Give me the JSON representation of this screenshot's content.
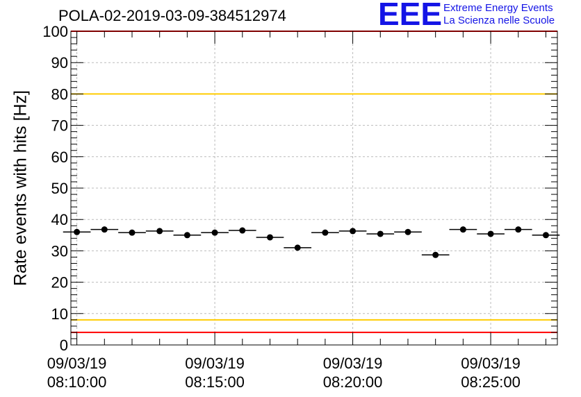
{
  "chart_data": {
    "type": "scatter",
    "title": "POLA-02-2019-03-09-384512974",
    "ylabel": "Rate events with hits [Hz]",
    "xlabel": "",
    "ylim": [
      0,
      100
    ],
    "y_ticks": [
      "0",
      "10",
      "20",
      "30",
      "40",
      "50",
      "60",
      "70",
      "80",
      "90",
      "100"
    ],
    "xlim": [
      "08:09:47",
      "08:27:25"
    ],
    "x_ticks": [
      {
        "date": "09/03/19",
        "time": "08:10:00"
      },
      {
        "date": "09/03/19",
        "time": "08:15:00"
      },
      {
        "date": "09/03/19",
        "time": "08:20:00"
      },
      {
        "date": "09/03/19",
        "time": "08:25:00"
      }
    ],
    "grid": true,
    "reference_lines": [
      {
        "y": 4,
        "color": "#ff0000"
      },
      {
        "y": 8,
        "color": "#ffcc00"
      },
      {
        "y": 80,
        "color": "#ffcc00"
      },
      {
        "y": 100,
        "color": "#ff0000"
      }
    ],
    "series": [
      {
        "points": [
          {
            "x": "08:10:00",
            "y": 36.0
          },
          {
            "x": "08:11:00",
            "y": 36.8
          },
          {
            "x": "08:12:00",
            "y": 35.8
          },
          {
            "x": "08:13:00",
            "y": 36.3
          },
          {
            "x": "08:14:00",
            "y": 35.0
          },
          {
            "x": "08:15:00",
            "y": 35.8
          },
          {
            "x": "08:16:00",
            "y": 36.5
          },
          {
            "x": "08:17:00",
            "y": 34.3
          },
          {
            "x": "08:18:00",
            "y": 31.0
          },
          {
            "x": "08:19:00",
            "y": 35.8
          },
          {
            "x": "08:20:00",
            "y": 36.3
          },
          {
            "x": "08:21:00",
            "y": 35.4
          },
          {
            "x": "08:22:00",
            "y": 36.0
          },
          {
            "x": "08:23:00",
            "y": 28.7
          },
          {
            "x": "08:24:00",
            "y": 36.8
          },
          {
            "x": "08:25:00",
            "y": 35.4
          },
          {
            "x": "08:26:00",
            "y": 36.8
          },
          {
            "x": "08:27:00",
            "y": 35.0
          }
        ],
        "x_error_seconds": 30
      }
    ],
    "colors": {
      "marker": "#000000",
      "grid": "#bbbbbb"
    }
  },
  "logo": {
    "mark": "EEE",
    "line1": "Extreme Energy Events",
    "line2": "La Scienza nelle Scuole"
  }
}
